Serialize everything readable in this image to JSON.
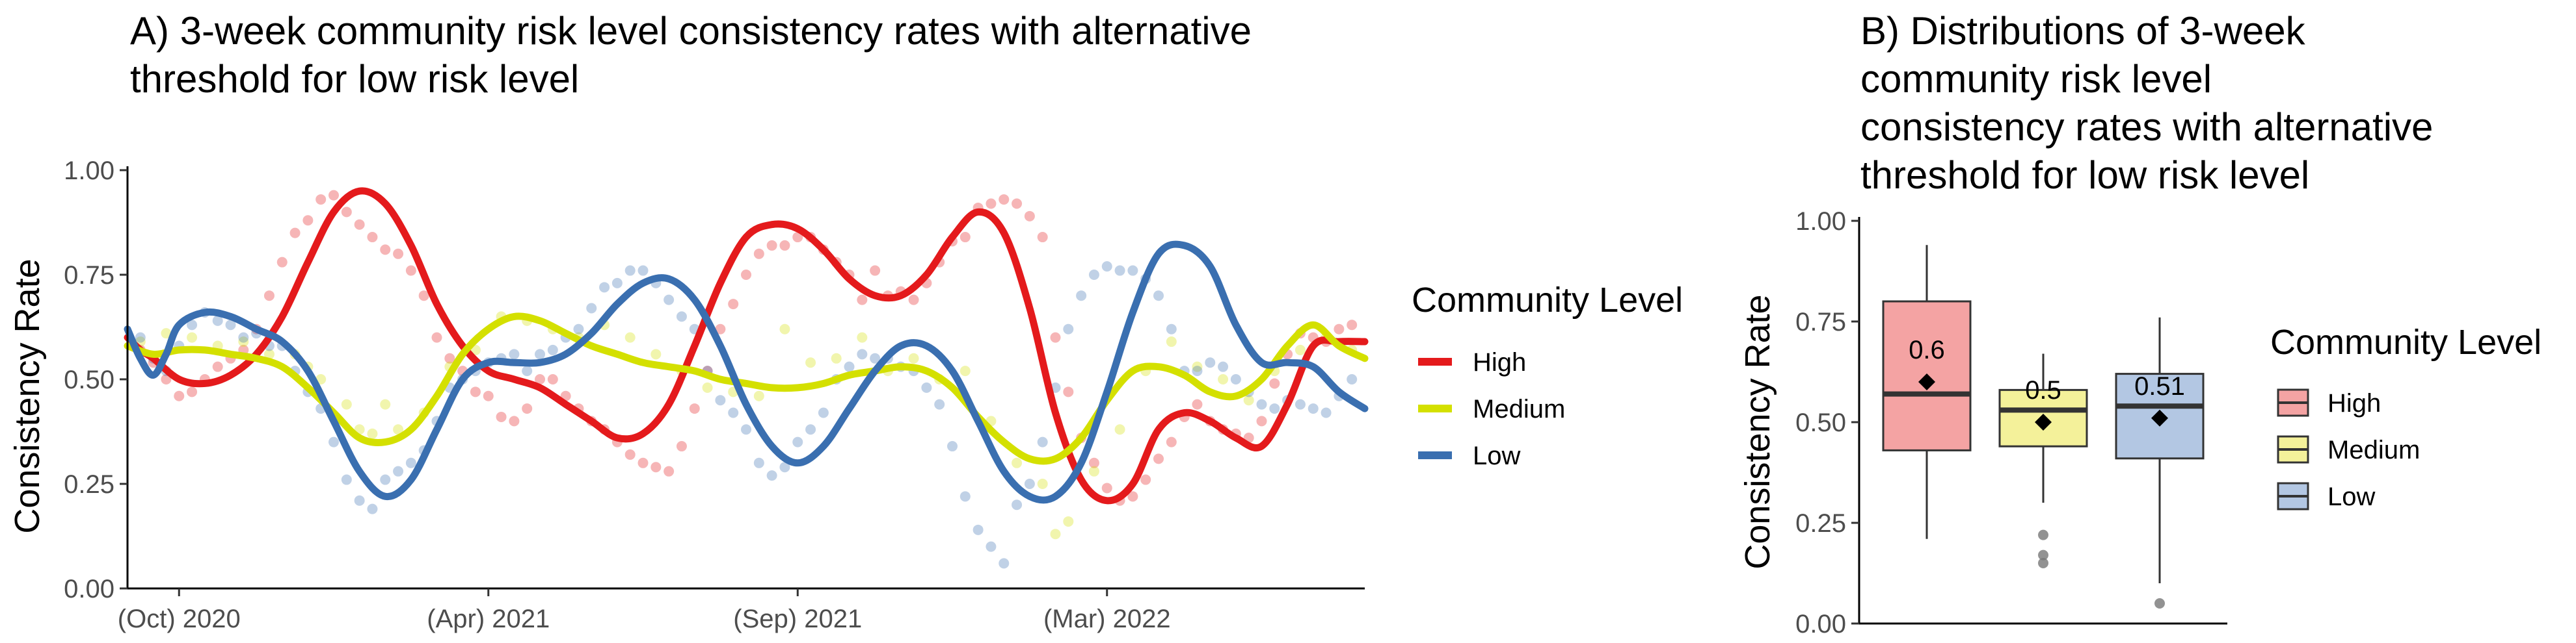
{
  "colors": {
    "high": "#e41a1c",
    "medium": "#d4e000",
    "low": "#3a6fb0",
    "box_high": "#f4a3a3",
    "box_medium": "#f4f19a",
    "box_low": "#b3c7e3"
  },
  "chart_data": [
    {
      "type": "line",
      "title_line1": "A) 3-week community risk level consistency rates with alternative",
      "title_line2": "threshold for low risk level",
      "xlabel": "",
      "ylabel": "Consistency Rate",
      "ylim": [
        0,
        1
      ],
      "y_ticks": [
        "0.00",
        "0.25",
        "0.50",
        "0.75",
        "1.00"
      ],
      "x_ticks": [
        "(Oct) 2020",
        "(Apr) 2021",
        "(Sep) 2021",
        "(Mar) 2022"
      ],
      "x_tick_positions": [
        4,
        28,
        52,
        76
      ],
      "xlim": [
        0,
        96
      ],
      "grid": false,
      "legend": {
        "title": "Community Level",
        "position": "right",
        "entries": [
          "High",
          "Medium",
          "Low"
        ]
      },
      "series": [
        {
          "name": "High",
          "color_key": "high",
          "x": [
            0,
            1,
            2,
            4,
            6,
            8,
            10,
            12,
            14,
            16,
            18,
            20,
            22,
            24,
            26,
            28,
            30,
            32,
            34,
            36,
            38,
            40,
            42,
            44,
            46,
            48,
            50,
            52,
            54,
            56,
            58,
            60,
            62,
            64,
            66,
            68,
            70,
            72,
            74,
            76,
            78,
            80,
            82,
            84,
            86,
            88,
            90,
            92,
            94,
            96
          ],
          "y": [
            0.6,
            0.57,
            0.55,
            0.5,
            0.49,
            0.51,
            0.56,
            0.65,
            0.78,
            0.9,
            0.95,
            0.92,
            0.82,
            0.68,
            0.58,
            0.52,
            0.5,
            0.48,
            0.44,
            0.4,
            0.36,
            0.37,
            0.44,
            0.58,
            0.73,
            0.84,
            0.87,
            0.86,
            0.81,
            0.74,
            0.7,
            0.7,
            0.75,
            0.84,
            0.9,
            0.85,
            0.67,
            0.42,
            0.26,
            0.21,
            0.25,
            0.38,
            0.42,
            0.4,
            0.36,
            0.34,
            0.44,
            0.58,
            0.59,
            0.59
          ]
        },
        {
          "name": "Medium",
          "color_key": "medium",
          "x": [
            0,
            2,
            4,
            6,
            8,
            10,
            12,
            14,
            16,
            18,
            20,
            22,
            24,
            26,
            28,
            30,
            32,
            34,
            36,
            38,
            40,
            42,
            44,
            46,
            48,
            50,
            52,
            54,
            56,
            58,
            60,
            62,
            64,
            66,
            68,
            70,
            72,
            74,
            76,
            78,
            80,
            82,
            84,
            86,
            88,
            90,
            92,
            94,
            96
          ],
          "y": [
            0.58,
            0.56,
            0.57,
            0.57,
            0.56,
            0.55,
            0.53,
            0.48,
            0.42,
            0.36,
            0.35,
            0.38,
            0.46,
            0.56,
            0.62,
            0.65,
            0.64,
            0.61,
            0.58,
            0.56,
            0.54,
            0.53,
            0.52,
            0.5,
            0.49,
            0.48,
            0.48,
            0.49,
            0.51,
            0.52,
            0.53,
            0.52,
            0.48,
            0.41,
            0.35,
            0.31,
            0.31,
            0.36,
            0.45,
            0.52,
            0.53,
            0.51,
            0.47,
            0.46,
            0.5,
            0.58,
            0.63,
            0.58,
            0.55
          ]
        },
        {
          "name": "Low",
          "color_key": "low",
          "x": [
            0,
            1,
            2,
            3,
            4,
            6,
            8,
            10,
            12,
            14,
            16,
            18,
            20,
            22,
            24,
            26,
            28,
            30,
            32,
            34,
            36,
            38,
            40,
            42,
            44,
            46,
            48,
            50,
            52,
            54,
            56,
            58,
            60,
            62,
            64,
            66,
            68,
            70,
            72,
            74,
            76,
            78,
            80,
            82,
            84,
            86,
            88,
            90,
            92,
            94,
            96
          ],
          "y": [
            0.62,
            0.55,
            0.51,
            0.56,
            0.63,
            0.66,
            0.65,
            0.62,
            0.59,
            0.52,
            0.4,
            0.28,
            0.22,
            0.26,
            0.38,
            0.5,
            0.54,
            0.54,
            0.54,
            0.56,
            0.61,
            0.68,
            0.73,
            0.74,
            0.69,
            0.58,
            0.44,
            0.34,
            0.3,
            0.34,
            0.43,
            0.52,
            0.58,
            0.58,
            0.52,
            0.4,
            0.28,
            0.22,
            0.22,
            0.3,
            0.47,
            0.66,
            0.8,
            0.82,
            0.77,
            0.63,
            0.54,
            0.54,
            0.53,
            0.47,
            0.43
          ]
        }
      ],
      "scatter": [
        {
          "name": "High",
          "color_key": "high",
          "x": [
            1,
            2,
            3,
            4,
            5,
            6,
            7,
            8,
            9,
            10,
            11,
            12,
            13,
            14,
            15,
            16,
            17,
            18,
            19,
            20,
            21,
            22,
            23,
            24,
            25,
            26,
            27,
            28,
            29,
            30,
            31,
            32,
            33,
            34,
            35,
            36,
            37,
            38,
            39,
            40,
            41,
            42,
            43,
            44,
            45,
            46,
            47,
            48,
            49,
            50,
            51,
            52,
            53,
            54,
            55,
            56,
            57,
            58,
            59,
            60,
            61,
            62,
            63,
            64,
            65,
            66,
            67,
            68,
            69,
            70,
            71,
            72,
            73,
            74,
            75,
            76,
            77,
            78,
            79,
            80,
            81,
            82,
            83,
            84,
            85,
            86,
            87,
            88,
            89,
            90,
            91,
            92,
            93,
            94,
            95
          ],
          "y": [
            0.57,
            0.54,
            0.5,
            0.46,
            0.47,
            0.5,
            0.53,
            0.55,
            0.57,
            0.62,
            0.7,
            0.78,
            0.85,
            0.88,
            0.93,
            0.94,
            0.9,
            0.87,
            0.84,
            0.81,
            0.8,
            0.76,
            0.7,
            0.6,
            0.55,
            0.52,
            0.47,
            0.46,
            0.41,
            0.4,
            0.43,
            0.5,
            0.5,
            0.46,
            0.43,
            0.4,
            0.38,
            0.35,
            0.32,
            0.3,
            0.29,
            0.28,
            0.34,
            0.43,
            0.52,
            0.62,
            0.68,
            0.75,
            0.8,
            0.82,
            0.82,
            0.84,
            0.84,
            0.81,
            0.78,
            0.75,
            0.69,
            0.76,
            0.7,
            0.71,
            0.69,
            0.73,
            0.78,
            0.83,
            0.84,
            0.91,
            0.92,
            0.93,
            0.92,
            0.89,
            0.84,
            0.6,
            0.47,
            0.36,
            0.3,
            0.24,
            0.21,
            0.22,
            0.26,
            0.31,
            0.35,
            0.41,
            0.44,
            0.4,
            0.38,
            0.37,
            0.36,
            0.4,
            0.49,
            0.56,
            0.61,
            0.6,
            0.59,
            0.62,
            0.63
          ]
        },
        {
          "name": "Medium",
          "color_key": "medium",
          "x": [
            1,
            3,
            5,
            7,
            9,
            11,
            13,
            14,
            15,
            17,
            18,
            19,
            20,
            21,
            23,
            25,
            27,
            29,
            31,
            33,
            35,
            37,
            39,
            41,
            43,
            45,
            47,
            49,
            51,
            53,
            55,
            57,
            59,
            61,
            63,
            65,
            67,
            69,
            71,
            72,
            73,
            75,
            77,
            79,
            81,
            83,
            85,
            87,
            89,
            91,
            93,
            95
          ],
          "y": [
            0.59,
            0.61,
            0.6,
            0.58,
            0.59,
            0.56,
            0.56,
            0.53,
            0.5,
            0.44,
            0.38,
            0.37,
            0.44,
            0.38,
            0.42,
            0.53,
            0.57,
            0.65,
            0.64,
            0.62,
            0.6,
            0.63,
            0.6,
            0.56,
            0.52,
            0.48,
            0.47,
            0.46,
            0.62,
            0.54,
            0.55,
            0.6,
            0.52,
            0.55,
            0.5,
            0.52,
            0.4,
            0.3,
            0.25,
            0.13,
            0.16,
            0.28,
            0.38,
            0.52,
            0.59,
            0.53,
            0.5,
            0.45,
            0.52,
            0.57,
            0.6,
            0.57
          ]
        },
        {
          "name": "Low",
          "color_key": "low",
          "x": [
            1,
            2,
            3,
            4,
            5,
            6,
            7,
            8,
            9,
            10,
            11,
            12,
            13,
            14,
            15,
            16,
            17,
            18,
            19,
            20,
            21,
            22,
            23,
            24,
            25,
            26,
            27,
            28,
            29,
            30,
            31,
            32,
            33,
            34,
            35,
            36,
            37,
            38,
            39,
            40,
            41,
            42,
            43,
            44,
            45,
            46,
            47,
            48,
            49,
            50,
            51,
            52,
            53,
            54,
            55,
            56,
            57,
            58,
            59,
            60,
            61,
            62,
            63,
            64,
            65,
            66,
            67,
            68,
            69,
            70,
            71,
            72,
            73,
            74,
            75,
            76,
            77,
            78,
            79,
            80,
            81,
            82,
            83,
            84,
            85,
            86,
            87,
            88,
            89,
            90,
            91,
            92,
            93,
            94,
            95
          ],
          "y": [
            0.6,
            0.55,
            0.52,
            0.58,
            0.63,
            0.66,
            0.64,
            0.63,
            0.6,
            0.61,
            0.58,
            0.58,
            0.52,
            0.47,
            0.43,
            0.35,
            0.26,
            0.21,
            0.19,
            0.26,
            0.28,
            0.3,
            0.33,
            0.4,
            0.48,
            0.5,
            0.52,
            0.54,
            0.55,
            0.56,
            0.52,
            0.56,
            0.57,
            0.6,
            0.62,
            0.67,
            0.72,
            0.73,
            0.76,
            0.76,
            0.73,
            0.69,
            0.65,
            0.62,
            0.52,
            0.45,
            0.42,
            0.38,
            0.3,
            0.27,
            0.29,
            0.35,
            0.38,
            0.42,
            0.5,
            0.53,
            0.56,
            0.55,
            0.55,
            0.53,
            0.52,
            0.48,
            0.44,
            0.34,
            0.22,
            0.14,
            0.1,
            0.06,
            0.2,
            0.25,
            0.35,
            0.48,
            0.62,
            0.7,
            0.75,
            0.77,
            0.76,
            0.76,
            0.74,
            0.7,
            0.62,
            0.52,
            0.52,
            0.54,
            0.53,
            0.5,
            0.47,
            0.44,
            0.43,
            0.45,
            0.44,
            0.43,
            0.42,
            0.46,
            0.5
          ]
        }
      ]
    },
    {
      "type": "box",
      "title_lines": [
        "B) Distributions of 3-week",
        "community risk level",
        "consistency rates with alternative",
        "threshold for low risk level"
      ],
      "ylabel": "Consistency Rate",
      "ylim": [
        0,
        1
      ],
      "y_ticks": [
        "0.00",
        "0.25",
        "0.50",
        "0.75",
        "1.00"
      ],
      "legend": {
        "title": "Community Level",
        "position": "right",
        "entries": [
          "High",
          "Medium",
          "Low"
        ]
      },
      "boxes": [
        {
          "name": "High",
          "color_key": "box_high",
          "lower_whisker": 0.21,
          "q1": 0.43,
          "median": 0.57,
          "q3": 0.8,
          "upper_whisker": 0.94,
          "mean": 0.6,
          "mean_label": "0.6",
          "outliers": []
        },
        {
          "name": "Medium",
          "color_key": "box_medium",
          "lower_whisker": 0.3,
          "q1": 0.44,
          "median": 0.53,
          "q3": 0.58,
          "upper_whisker": 0.67,
          "mean": 0.5,
          "mean_label": "0.5",
          "outliers": [
            0.22,
            0.17,
            0.15
          ]
        },
        {
          "name": "Low",
          "color_key": "box_low",
          "lower_whisker": 0.1,
          "q1": 0.41,
          "median": 0.54,
          "q3": 0.62,
          "upper_whisker": 0.76,
          "mean": 0.51,
          "mean_label": "0.51",
          "outliers": [
            0.05
          ]
        }
      ]
    }
  ]
}
